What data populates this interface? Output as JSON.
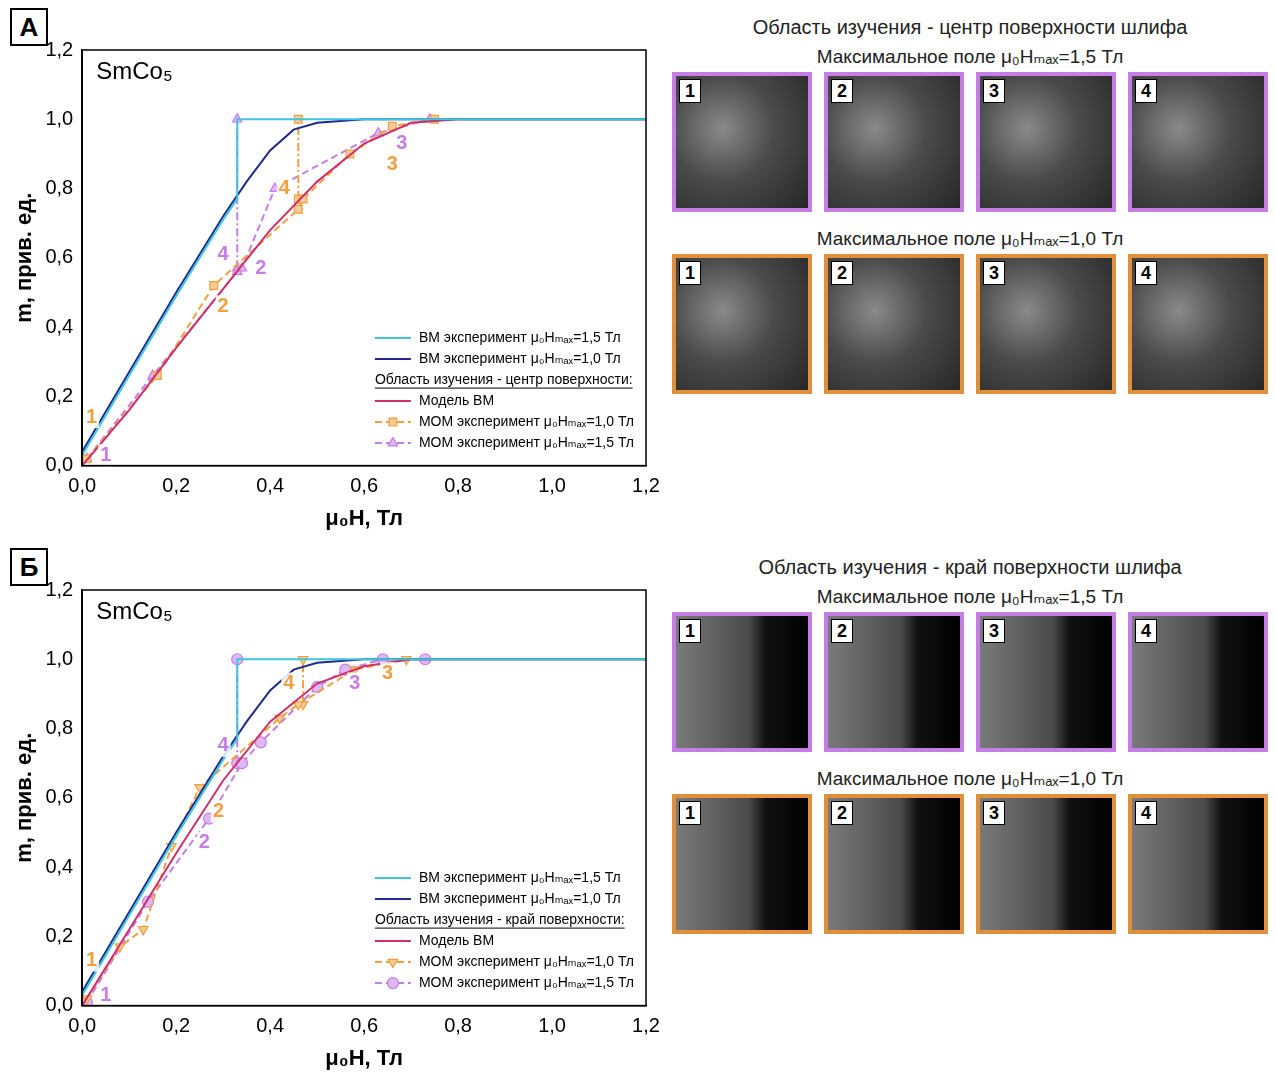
{
  "chart_data": [
    {
      "type": "scatter",
      "panel": "А",
      "label": "SmCo₅",
      "x_label": "μ₀H, Тл",
      "y_label": "m, прив. ед.",
      "xlim": [
        0,
        1.2
      ],
      "ylim": [
        0,
        1.2
      ],
      "xticks": [
        {
          "value": 0,
          "label": "0,0"
        },
        {
          "value": 0.2,
          "label": "0,2"
        },
        {
          "value": 0.4,
          "label": "0,4"
        },
        {
          "value": 0.6,
          "label": "0,6"
        },
        {
          "value": 0.8,
          "label": "0,8"
        },
        {
          "value": 1.0,
          "label": "1,0"
        },
        {
          "value": 1.2,
          "label": "1,2"
        }
      ],
      "yticks": [
        {
          "value": 0,
          "label": "0,0"
        },
        {
          "value": 0.2,
          "label": "0,2"
        },
        {
          "value": 0.4,
          "label": "0,4"
        },
        {
          "value": 0.6,
          "label": "0,6"
        },
        {
          "value": 0.8,
          "label": "0,8"
        },
        {
          "value": 1.0,
          "label": "1,0"
        },
        {
          "value": 1.2,
          "label": "1,2"
        }
      ],
      "grid": false,
      "legend": "lower right",
      "legend_group_title": "Область изучения - центр поверхности:",
      "series": [
        {
          "name": "ВМ эксперимент μ₀Hₘₐₓ=1,5 Тл",
          "color": "#3fc5e0",
          "line_style": "solid",
          "x": [
            0,
            0.1,
            0.2,
            0.3,
            0.33,
            0.33,
            0.5,
            1.2
          ],
          "values": [
            0.03,
            0.26,
            0.49,
            0.71,
            0.77,
            1.0,
            1.0,
            1.0
          ]
        },
        {
          "name": "ВМ эксперимент μ₀Hₘₐₓ=1,0 Тл",
          "color": "#1f2a8a",
          "line_style": "solid",
          "x": [
            0,
            0.1,
            0.2,
            0.3,
            0.35,
            0.4,
            0.45,
            0.5,
            0.6,
            1.2
          ],
          "values": [
            0.04,
            0.27,
            0.5,
            0.72,
            0.82,
            0.91,
            0.97,
            0.99,
            1.0,
            1.0
          ]
        },
        {
          "name": "Модель ВМ",
          "color": "#d0306a",
          "line_style": "solid",
          "x": [
            0,
            0.1,
            0.2,
            0.3,
            0.4,
            0.5,
            0.6,
            0.7,
            0.8,
            1.2
          ],
          "values": [
            0,
            0.16,
            0.34,
            0.51,
            0.68,
            0.82,
            0.93,
            0.99,
            1.0,
            1.0
          ]
        },
        {
          "name": "МОМ эксперимент μ₀Hₘₐₓ=1,0 Тл",
          "color": "#f0a040",
          "line_style": "dashed",
          "marker": "square",
          "x": [
            0.01,
            0.16,
            0.28,
            0.46,
            0.47,
            0.57,
            0.66,
            0.75
          ],
          "values": [
            0.02,
            0.26,
            0.52,
            0.74,
            0.77,
            0.9,
            0.98,
            1.0
          ],
          "jump": {
            "x": [
              0.46,
              0.46
            ],
            "values": [
              0.77,
              1.0
            ]
          }
        },
        {
          "name": "МОМ эксперимент μ₀Hₘₐₓ=1,5 Тл",
          "color": "#c77de6",
          "line_style": "dashed",
          "marker": "triangle",
          "x": [
            0.01,
            0.15,
            0.33,
            0.34,
            0.41,
            0.63,
            0.74
          ],
          "values": [
            0.02,
            0.26,
            0.56,
            0.57,
            0.8,
            0.96,
            1.0
          ],
          "jump": {
            "x": [
              0.33,
              0.33
            ],
            "values": [
              0.57,
              1.0
            ]
          }
        }
      ],
      "annotations": [
        {
          "text": "1",
          "x": 0.02,
          "y": 0.14,
          "color": "#f0a040"
        },
        {
          "text": "2",
          "x": 0.3,
          "y": 0.46,
          "color": "#f0a040"
        },
        {
          "text": "3",
          "x": 0.66,
          "y": 0.87,
          "color": "#f0a040"
        },
        {
          "text": "4",
          "x": 0.43,
          "y": 0.8,
          "color": "#f0a040"
        },
        {
          "text": "1",
          "x": 0.05,
          "y": 0.03,
          "color": "#c77de6"
        },
        {
          "text": "2",
          "x": 0.38,
          "y": 0.57,
          "color": "#c77de6"
        },
        {
          "text": "3",
          "x": 0.68,
          "y": 0.93,
          "color": "#c77de6"
        },
        {
          "text": "4",
          "x": 0.3,
          "y": 0.61,
          "color": "#c77de6"
        }
      ]
    },
    {
      "type": "scatter",
      "panel": "Б",
      "label": "SmCo₅",
      "x_label": "μ₀H, Тл",
      "y_label": "m, прив. ед.",
      "xlim": [
        0,
        1.2
      ],
      "ylim": [
        0,
        1.2
      ],
      "xticks": [
        {
          "value": 0,
          "label": "0,0"
        },
        {
          "value": 0.2,
          "label": "0,2"
        },
        {
          "value": 0.4,
          "label": "0,4"
        },
        {
          "value": 0.6,
          "label": "0,6"
        },
        {
          "value": 0.8,
          "label": "0,8"
        },
        {
          "value": 1.0,
          "label": "1,0"
        },
        {
          "value": 1.2,
          "label": "1,2"
        }
      ],
      "yticks": [
        {
          "value": 0,
          "label": "0,0"
        },
        {
          "value": 0.2,
          "label": "0,2"
        },
        {
          "value": 0.4,
          "label": "0,4"
        },
        {
          "value": 0.6,
          "label": "0,6"
        },
        {
          "value": 0.8,
          "label": "0,8"
        },
        {
          "value": 1.0,
          "label": "1,0"
        },
        {
          "value": 1.2,
          "label": "1,2"
        }
      ],
      "grid": false,
      "legend": "lower right",
      "legend_group_title": "Область изучения - край поверхности:",
      "series": [
        {
          "name": "ВМ эксперимент μ₀Hₘₐₓ=1,5 Тл",
          "color": "#3fc5e0",
          "line_style": "solid",
          "x": [
            0,
            0.1,
            0.2,
            0.3,
            0.33,
            0.33,
            0.5,
            1.2
          ],
          "values": [
            0.03,
            0.26,
            0.49,
            0.71,
            0.77,
            1.0,
            1.0,
            1.0
          ]
        },
        {
          "name": "ВМ эксперимент μ₀Hₘₐₓ=1,0 Тл",
          "color": "#1f2a8a",
          "line_style": "solid",
          "x": [
            0,
            0.1,
            0.2,
            0.3,
            0.35,
            0.4,
            0.45,
            0.5,
            0.6,
            1.2
          ],
          "values": [
            0.04,
            0.27,
            0.5,
            0.72,
            0.82,
            0.91,
            0.97,
            0.99,
            1.0,
            1.0
          ]
        },
        {
          "name": "Модель ВМ",
          "color": "#d0306a",
          "line_style": "solid",
          "x": [
            0,
            0.1,
            0.2,
            0.3,
            0.4,
            0.5,
            0.6,
            0.7,
            1.2
          ],
          "values": [
            0,
            0.22,
            0.44,
            0.65,
            0.82,
            0.93,
            0.98,
            1.0,
            1.0
          ]
        },
        {
          "name": "МОМ эксперимент μ₀Hₘₐₓ=1,0 Тл",
          "color": "#f0a040",
          "line_style": "dashed",
          "marker": "triangle-down",
          "x": [
            0.01,
            0.08,
            0.13,
            0.19,
            0.25,
            0.42,
            0.46,
            0.58,
            0.69
          ],
          "values": [
            0.02,
            0.17,
            0.22,
            0.46,
            0.63,
            0.83,
            0.87,
            0.97,
            1.0
          ],
          "jump": {
            "x": [
              0.47,
              0.47
            ],
            "values": [
              0.87,
              1.0
            ]
          }
        },
        {
          "name": "МОМ эксперимент μ₀Hₘₐₓ=1,5 Тл",
          "color": "#c77de6",
          "line_style": "dashed",
          "marker": "circle",
          "x": [
            0.01,
            0.14,
            0.27,
            0.34,
            0.38,
            0.5,
            0.56,
            0.64,
            0.73
          ],
          "values": [
            0.01,
            0.3,
            0.54,
            0.7,
            0.76,
            0.92,
            0.97,
            1.0,
            1.0
          ],
          "jump": {
            "x": [
              0.33,
              0.33
            ],
            "values": [
              0.7,
              1.0
            ]
          }
        }
      ],
      "annotations": [
        {
          "text": "1",
          "x": 0.02,
          "y": 0.13,
          "color": "#f0a040"
        },
        {
          "text": "2",
          "x": 0.29,
          "y": 0.56,
          "color": "#f0a040"
        },
        {
          "text": "3",
          "x": 0.65,
          "y": 0.96,
          "color": "#f0a040"
        },
        {
          "text": "4",
          "x": 0.44,
          "y": 0.93,
          "color": "#f0a040"
        },
        {
          "text": "1",
          "x": 0.05,
          "y": 0.03,
          "color": "#c77de6"
        },
        {
          "text": "2",
          "x": 0.26,
          "y": 0.47,
          "color": "#c77de6"
        },
        {
          "text": "3",
          "x": 0.58,
          "y": 0.93,
          "color": "#c77de6"
        },
        {
          "text": "4",
          "x": 0.3,
          "y": 0.75,
          "color": "#c77de6"
        }
      ]
    }
  ],
  "micrographs": [
    {
      "title": "Область изучения - центр поверхности шлифа",
      "rows": [
        {
          "caption": "Максимальное поле μ₀Hₘₐₓ=1,5 Тл",
          "color": "#c77de6",
          "tiles": [
            "1",
            "2",
            "3",
            "4"
          ]
        },
        {
          "caption": "Максимальное поле μ₀Hₘₐₓ=1,0 Тл",
          "color": "#e0903a",
          "tiles": [
            "1",
            "2",
            "3",
            "4"
          ]
        }
      ]
    },
    {
      "title": "Область изучения - край поверхности шлифа",
      "rows": [
        {
          "caption": "Максимальное поле μ₀Hₘₐₓ=1,5 Тл",
          "color": "#c77de6",
          "tiles": [
            "1",
            "2",
            "3",
            "4"
          ]
        },
        {
          "caption": "Максимальное поле μ₀Hₘₐₓ=1,0 Тл",
          "color": "#e0903a",
          "tiles": [
            "1",
            "2",
            "3",
            "4"
          ]
        }
      ]
    }
  ]
}
